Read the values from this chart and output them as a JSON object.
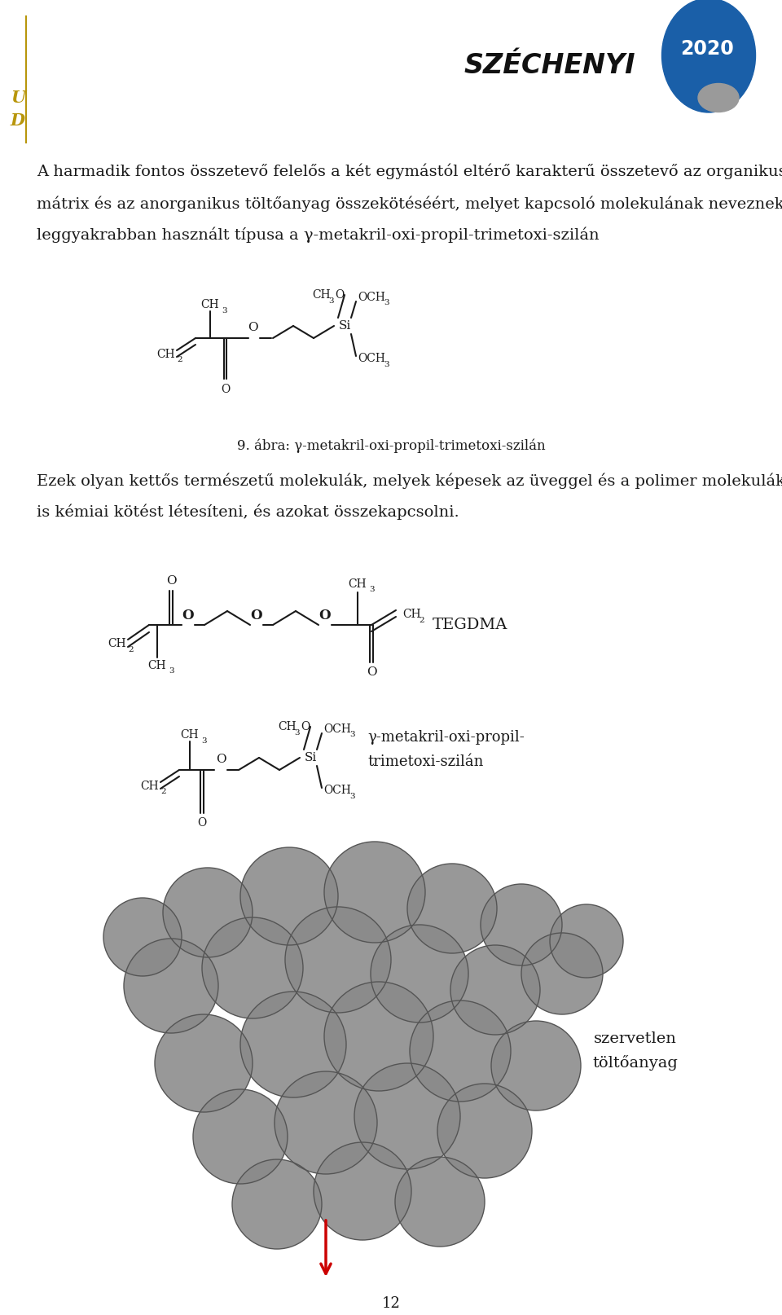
{
  "background_color": "#ffffff",
  "main_text_line1": "A harmadik fontos összetevő felelős a két egymástól eltérő karakterű összetevő az organikus",
  "main_text_line2": "mátrix és az anorganikus töltőanyag összekötéséért, melyet kapcsoló molekulának neveznek. A",
  "main_text_line3": "leggyakrabban használt típusa a γ-metakril-oxi-propil-trimetoxi-szilán",
  "caption_text": "9. ábra: γ-metakril-oxi-propil-trimetoxi-szilán",
  "body_text_line1": "Ezek olyan kettős természetű molekulák, melyek képesek az üveggel és a polimer molekulákkal",
  "body_text_line2": "is kémiai kötést létesíteni, és azokat összekapcsolni.",
  "tegdma_label": "TEGDMA",
  "silane_label": "γ-metakril-oxi-propil-\ntrimetoxi-szilán",
  "bottom_label": "szervetlen\ntöltőanyag",
  "page_number": "12",
  "text_color": "#1a1a1a",
  "molecule_color": "#1a1a1a",
  "arrow_color": "#cc0000",
  "szechenyi_text": "SZÉCHENYI",
  "logo_2020": "2020",
  "circle_fill": "#8a8a8a",
  "circle_edge": "#555555"
}
